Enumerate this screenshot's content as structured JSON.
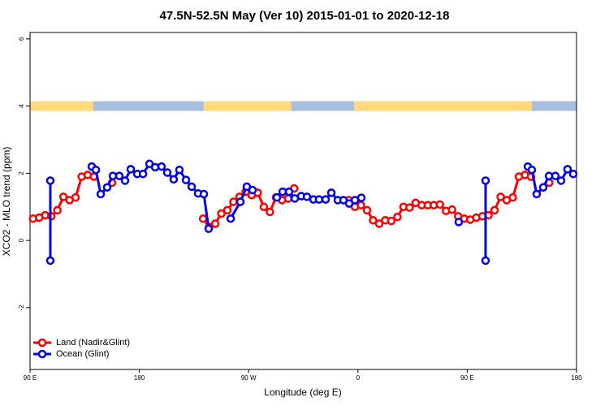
{
  "chart_data": {
    "type": "line",
    "title": "47.5N-52.5N May (Ver 10)   2015-01-01 to 2020-12-18",
    "xlabel": "Longitude (deg E)",
    "ylabel": "XCO2 - MLO trend (ppm)",
    "xlim": [
      90,
      540
    ],
    "ylim": [
      -3.84,
      6.19
    ],
    "xticks": [
      {
        "value": 90,
        "label": "90 E"
      },
      180,
      {
        "value": 270,
        "label": "90 W"
      },
      {
        "value": 360,
        "label": "0"
      },
      {
        "value": 450,
        "label": "90 E"
      },
      {
        "value": 540,
        "label": "180"
      }
    ],
    "yticks": [
      -2,
      0,
      2,
      4,
      6
    ],
    "legend": "bottom-left",
    "band": {
      "y": 4,
      "land_color": "#ffd97a",
      "ocean_color": "#a8bfe0",
      "land": [
        [
          90,
          142
        ],
        [
          233,
          305
        ],
        [
          357,
          503
        ]
      ],
      "ocean": [
        [
          142,
          233
        ],
        [
          305,
          357
        ],
        [
          503,
          540
        ]
      ]
    },
    "series": [
      {
        "name": "Land (Nadir&Glint)",
        "color": "#ff0000",
        "x": [
          92.5,
          97.5,
          102.5,
          107.5,
          112.5,
          117.5,
          122.5,
          127.5,
          132.5,
          137.5,
          142.5,
          null,
          157.5,
          null,
          232.5,
          237.5,
          242.5,
          247.5,
          252.5,
          257.5,
          262.5,
          267.5,
          272.5,
          277.5,
          282.5,
          287.5,
          292.5,
          297.5,
          302.5,
          307.5,
          null,
          352.5,
          357.5,
          362.5,
          367.5,
          372.5,
          377.5,
          382.5,
          387.5,
          392.5,
          397.5,
          402.5,
          407.5,
          412.5,
          417.5,
          422.5,
          427.5,
          432.5,
          437.5,
          442.5,
          447.5,
          452.5,
          457.5,
          462.5,
          467.5,
          472.5,
          477.5,
          482.5,
          487.5,
          492.5,
          497.5,
          502.5,
          null,
          517.5
        ],
        "values": [
          0.65,
          0.68,
          0.75,
          0.72,
          0.9,
          1.3,
          1.2,
          1.28,
          1.9,
          1.95,
          1.9,
          null,
          1.72,
          null,
          0.65,
          0.4,
          0.5,
          0.8,
          0.9,
          1.15,
          1.3,
          1.45,
          1.35,
          1.42,
          1.0,
          0.85,
          1.28,
          1.2,
          1.25,
          1.55,
          null,
          1.2,
          1.0,
          1.05,
          0.9,
          0.6,
          0.5,
          0.6,
          0.58,
          0.7,
          1.0,
          0.98,
          1.12,
          1.05,
          1.05,
          1.05,
          1.07,
          0.88,
          0.92,
          0.72,
          0.65,
          0.62,
          0.68,
          0.72,
          0.75,
          0.9,
          1.3,
          1.2,
          1.28,
          1.9,
          1.95,
          1.9,
          null,
          1.72
        ]
      },
      {
        "name": "Ocean (Glint)",
        "color": "#0000ee",
        "x": [
          106.7,
          106.7,
          null,
          140.8,
          144.2,
          148.2,
          153.5,
          158.2,
          163.5,
          168.2,
          172.9,
          178.3,
          183.0,
          188.3,
          193.0,
          198.3,
          203.0,
          208.3,
          213.0,
          218.4,
          223.1,
          228.4,
          233.1,
          237.1,
          null,
          255.2,
          263.2,
          268.5,
          273.2,
          null,
          293.3,
          298.0,
          303.3,
          308.0,
          313.3,
          318.0,
          323.4,
          328.0,
          333.4,
          338.1,
          343.4,
          348.1,
          352.8,
          357.5,
          362.8,
          null,
          443.0,
          null,
          465.1,
          465.1,
          null,
          499.9,
          503.2,
          507.2,
          512.6,
          517.3,
          522.6,
          527.3,
          532.6,
          537.3
        ],
        "values": [
          1.78,
          -0.6,
          null,
          2.2,
          2.1,
          1.38,
          1.58,
          1.92,
          1.92,
          1.78,
          2.12,
          1.98,
          1.98,
          2.28,
          2.18,
          2.2,
          2.02,
          1.82,
          2.1,
          1.8,
          1.6,
          1.4,
          1.38,
          0.35,
          null,
          0.65,
          1.15,
          1.6,
          1.5,
          null,
          1.28,
          1.45,
          1.45,
          1.25,
          1.32,
          1.3,
          1.22,
          1.22,
          1.22,
          1.42,
          1.2,
          1.2,
          1.1,
          1.2,
          1.27,
          null,
          0.55,
          null,
          1.78,
          -0.6,
          null,
          2.2,
          2.1,
          1.38,
          1.58,
          1.92,
          1.92,
          1.78,
          2.12,
          1.98
        ]
      }
    ]
  }
}
